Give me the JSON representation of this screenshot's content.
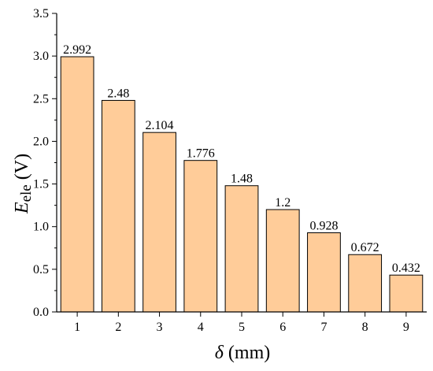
{
  "chart_data": {
    "type": "bar",
    "categories": [
      "1",
      "2",
      "3",
      "4",
      "5",
      "6",
      "7",
      "8",
      "9"
    ],
    "values": [
      2.992,
      2.48,
      2.104,
      1.776,
      1.48,
      1.2,
      0.928,
      0.672,
      0.432
    ],
    "data_labels": [
      "2.992",
      "2.48",
      "2.104",
      "1.776",
      "1.48",
      "1.2",
      "0.928",
      "0.672",
      "0.432"
    ],
    "xlabel": {
      "italic": "δ",
      "rest": " (mm)"
    },
    "ylabel": {
      "main": "E",
      "sub": "ele",
      "rest": " (V)"
    },
    "ylim": [
      0,
      3.5
    ],
    "yticks": [
      "0.0",
      "0.5",
      "1.0",
      "1.5",
      "2.0",
      "2.5",
      "3.0",
      "3.5"
    ],
    "bar_color": "#ffcc99",
    "bar_edge": "#000000",
    "grid": false
  }
}
